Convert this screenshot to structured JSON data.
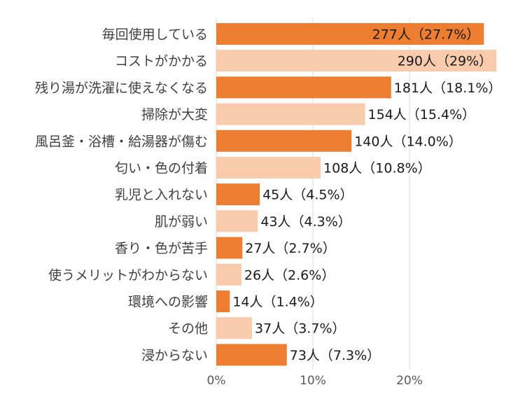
{
  "chart_data": {
    "type": "bar",
    "orientation": "horizontal",
    "categories": [
      "毎回使用している",
      "コストがかかる",
      "残り湯が洗濯に使えなくなる",
      "掃除が大変",
      "風呂釜・浴槽・給湯器が傷む",
      "匂い・色の付着",
      "乳児と入れない",
      "肌が弱い",
      "香り・色が苦手",
      "使うメリットがわからない",
      "環境への影響",
      "その他",
      "浸からない"
    ],
    "values": [
      27.7,
      29,
      18.1,
      15.4,
      14.0,
      10.8,
      4.5,
      4.3,
      2.7,
      2.6,
      1.4,
      3.7,
      7.3
    ],
    "data_labels": [
      "277人（27.7%）",
      "290人（29%）",
      "181人（18.1%）",
      "154人（15.4%）",
      "140人（14.0%）",
      "108人（10.8%）",
      "45人（4.5%）",
      "43人（4.3%）",
      "27人（2.7%）",
      "26人（2.6%）",
      "14人（1.4%）",
      "37人（3.7%）",
      "73人（7.3%）"
    ],
    "xlim": [
      0,
      29
    ],
    "xticks": [
      0,
      10,
      20
    ],
    "xtick_labels": [
      "0%",
      "10%",
      "20%"
    ],
    "grid": true,
    "title": "",
    "xlabel": "",
    "ylabel": "",
    "colors": {
      "dark": "#ED7D31",
      "light": "#F8CBAD",
      "grid": "#D9D9D9"
    }
  }
}
